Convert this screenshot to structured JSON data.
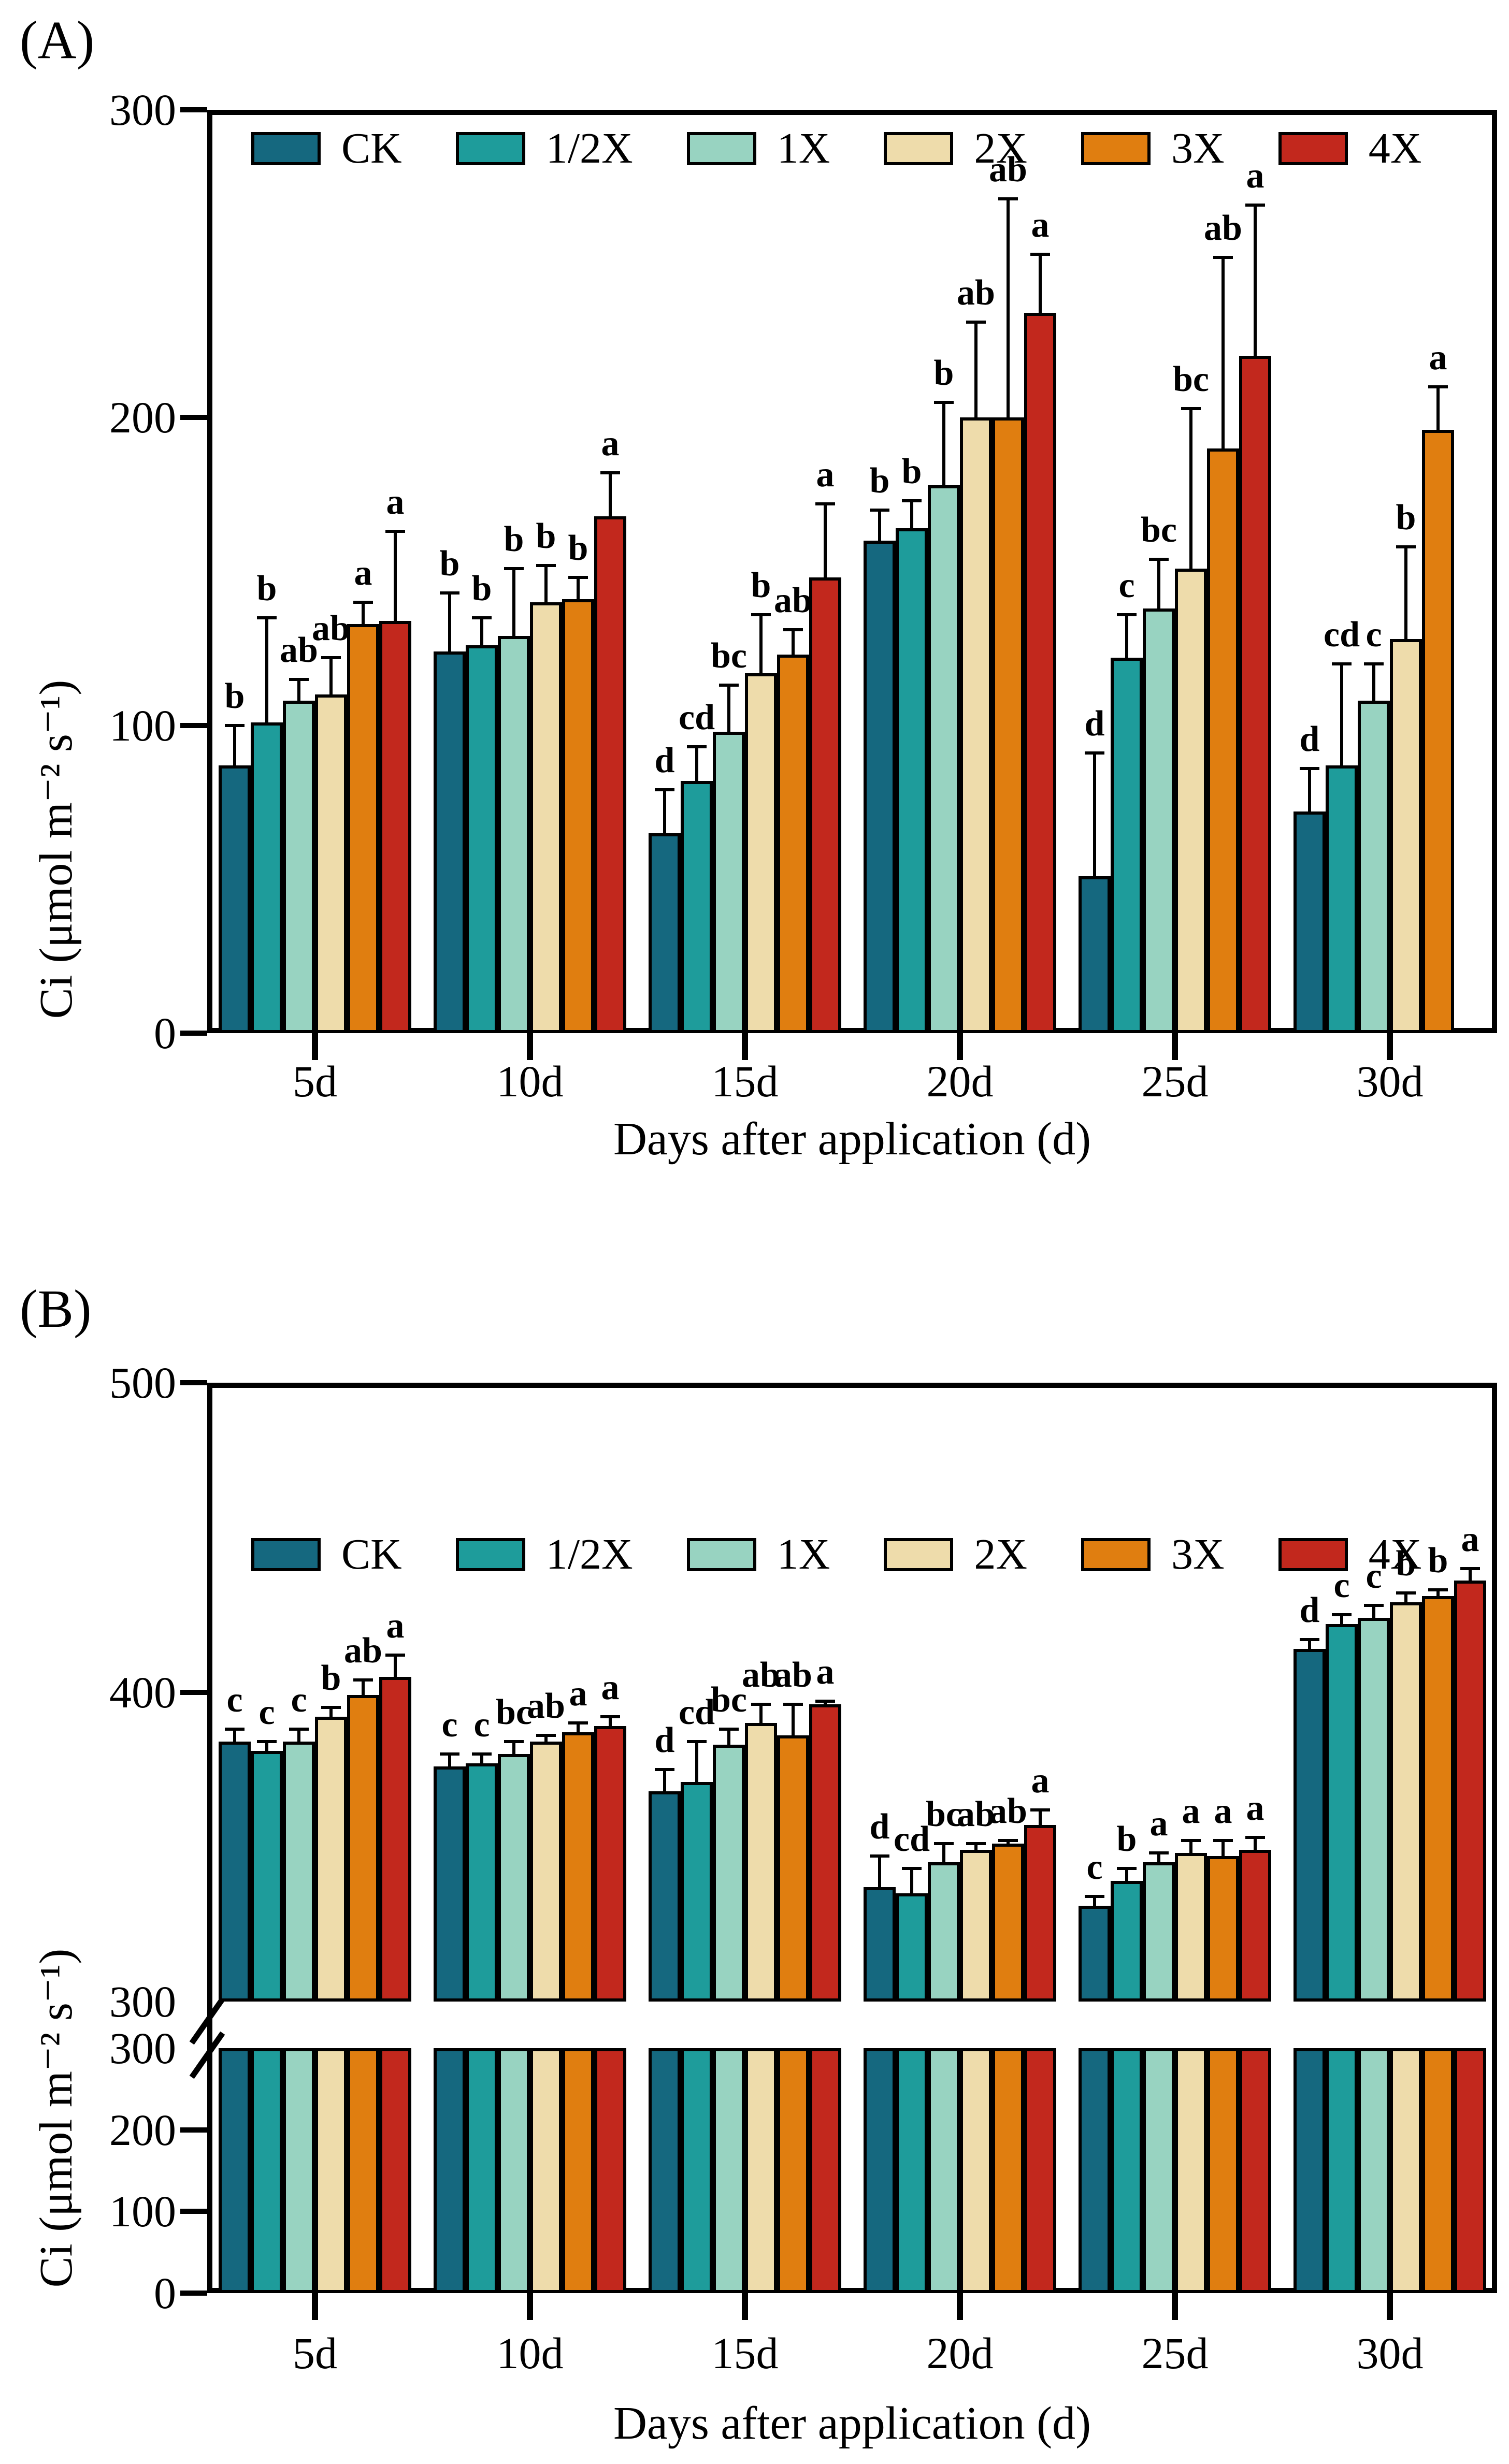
{
  "chart_data": [
    {
      "panel": "A",
      "panel_label": "(A)",
      "type": "bar",
      "title": "",
      "xlabel": "Days after application (d)",
      "ylabel": "Ci (μmol m⁻² s⁻¹)",
      "categories": [
        "5d",
        "10d",
        "15d",
        "20d",
        "25d",
        "30d"
      ],
      "ylim": [
        0,
        300
      ],
      "yticks": [
        0,
        100,
        200,
        300
      ],
      "grid": false,
      "legend_position": "top-inside",
      "legend": [
        "CK",
        "1/2X",
        "1X",
        "2X",
        "3X",
        "4X"
      ],
      "series": [
        {
          "name": "CK",
          "color": "#15687F",
          "values": [
            87,
            124,
            65,
            160,
            51,
            72
          ],
          "errors": [
            13,
            19,
            14,
            10,
            40,
            14
          ],
          "letters": [
            "b",
            "b",
            "d",
            "b",
            "d",
            "d"
          ]
        },
        {
          "name": "1/2X",
          "color": "#1E9C9B",
          "values": [
            101,
            126,
            82,
            164,
            122,
            87
          ],
          "errors": [
            34,
            9,
            11,
            9,
            14,
            33
          ],
          "letters": [
            "b",
            "b",
            "cd",
            "b",
            "c",
            "cd"
          ]
        },
        {
          "name": "1X",
          "color": "#98D3C1",
          "values": [
            108,
            129,
            98,
            178,
            138,
            108
          ],
          "errors": [
            7,
            22,
            15,
            27,
            16,
            12
          ],
          "letters": [
            "ab",
            "b",
            "bc",
            "b",
            "bc",
            "c"
          ]
        },
        {
          "name": "2X",
          "color": "#EEDCAB",
          "values": [
            110,
            140,
            117,
            200,
            151,
            128
          ],
          "errors": [
            12,
            12,
            19,
            31,
            52,
            30
          ],
          "letters": [
            "ab",
            "b",
            "b",
            "ab",
            "bc",
            "b"
          ]
        },
        {
          "name": "3X",
          "color": "#E07E10",
          "values": [
            133,
            141,
            123,
            200,
            190,
            196
          ],
          "errors": [
            7,
            7,
            8,
            71,
            62,
            14
          ],
          "letters": [
            "a",
            "b",
            "ab",
            "ab",
            "ab",
            "a"
          ]
        },
        {
          "name": "4X",
          "color": "#C2281D",
          "values": [
            134,
            168,
            148,
            234,
            220,
            null
          ],
          "errors": [
            29,
            14,
            24,
            19,
            49,
            null
          ],
          "letters": [
            "a",
            "a",
            "a",
            "a",
            "a",
            null
          ]
        }
      ]
    },
    {
      "panel": "B",
      "panel_label": "(B)",
      "type": "bar",
      "title": "",
      "xlabel": "Days after application (d)",
      "ylabel": "Ci (μmol m⁻² s⁻¹)",
      "categories": [
        "5d",
        "10d",
        "15d",
        "20d",
        "25d",
        "30d"
      ],
      "ylim": [
        0,
        500
      ],
      "axis_break": {
        "lower_max": 300,
        "upper_min": 300
      },
      "yticks_upper": [
        300,
        400,
        500
      ],
      "yticks_lower": [
        0,
        100,
        200,
        300
      ],
      "grid": false,
      "legend_position": "top-inside",
      "legend": [
        "CK",
        "1/2X",
        "1X",
        "2X",
        "3X",
        "4X"
      ],
      "series": [
        {
          "name": "CK",
          "color": "#15687F",
          "values": [
            384,
            376,
            368,
            337,
            331,
            414
          ],
          "errors": [
            4,
            4,
            7,
            10,
            3,
            3
          ],
          "letters": [
            "c",
            "c",
            "d",
            "d",
            "c",
            "d"
          ]
        },
        {
          "name": "1/2X",
          "color": "#1E9C9B",
          "values": [
            381,
            377,
            371,
            335,
            339,
            422
          ],
          "errors": [
            3,
            3,
            13,
            8,
            4,
            3
          ],
          "letters": [
            "c",
            "c",
            "cd",
            "cd",
            "b",
            "c"
          ]
        },
        {
          "name": "1X",
          "color": "#98D3C1",
          "values": [
            384,
            380,
            383,
            345,
            345,
            424
          ],
          "errors": [
            4,
            4,
            5,
            6,
            3,
            4
          ],
          "letters": [
            "c",
            "bc",
            "bc",
            "bc",
            "a",
            "c"
          ]
        },
        {
          "name": "2X",
          "color": "#EEDCAB",
          "values": [
            392,
            384,
            390,
            349,
            348,
            429
          ],
          "errors": [
            3,
            2,
            6,
            2,
            4,
            3
          ],
          "letters": [
            "b",
            "ab",
            "ab",
            "ab",
            "a",
            "b"
          ]
        },
        {
          "name": "3X",
          "color": "#E07E10",
          "values": [
            399,
            387,
            386,
            351,
            347,
            431
          ],
          "errors": [
            5,
            3,
            10,
            1,
            5,
            2
          ],
          "letters": [
            "ab",
            "a",
            "ab",
            "ab",
            "a",
            "b"
          ]
        },
        {
          "name": "4X",
          "color": "#C2281D",
          "values": [
            405,
            389,
            396,
            357,
            349,
            436
          ],
          "errors": [
            7,
            3,
            1,
            5,
            4,
            4
          ],
          "letters": [
            "a",
            "a",
            "a",
            "a",
            "a",
            "a"
          ]
        }
      ]
    }
  ]
}
